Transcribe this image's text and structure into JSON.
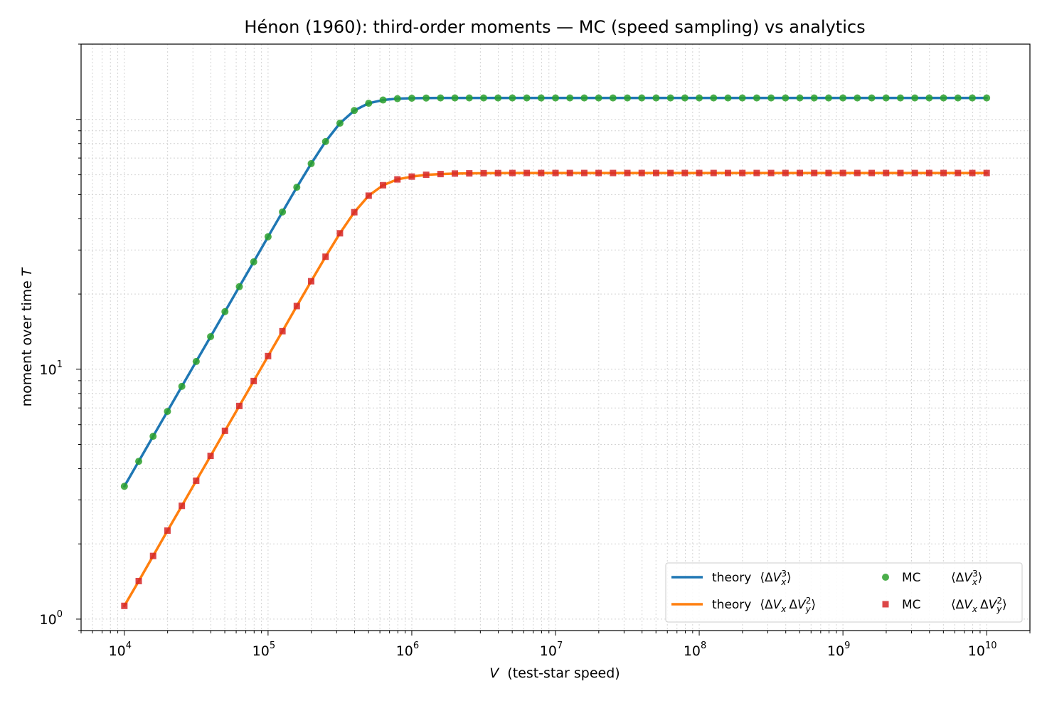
{
  "chart_data": {
    "type": "line",
    "title": "Hénon (1960): third-order moments — MC (speed sampling) vs analytics",
    "xlabel": "V",
    "xlabel_suffix": "(test-star speed)",
    "ylabel": "moment over time",
    "ylabel_var": "T",
    "xscale": "log",
    "yscale": "log",
    "xlim": [
      5000,
      20000000000
    ],
    "ylim": [
      0.9,
      200
    ],
    "grid": true,
    "legend_position": "lower-right",
    "x_ticks": [
      {
        "value": 10000,
        "base": "10",
        "exp": "4"
      },
      {
        "value": 100000,
        "base": "10",
        "exp": "5"
      },
      {
        "value": 1000000,
        "base": "10",
        "exp": "6"
      },
      {
        "value": 10000000,
        "base": "10",
        "exp": "7"
      },
      {
        "value": 100000000,
        "base": "10",
        "exp": "8"
      },
      {
        "value": 1000000000,
        "base": "10",
        "exp": "9"
      },
      {
        "value": 10000000000,
        "base": "10",
        "exp": "10"
      }
    ],
    "y_ticks": [
      {
        "value": 1,
        "base": "10",
        "exp": "0"
      },
      {
        "value": 10,
        "base": "10",
        "exp": "1"
      }
    ],
    "x_log10_start": 4,
    "x_log10_step": 0.1,
    "series": [
      {
        "name": "theory",
        "label_math": "⟨ΔV_x^3⟩",
        "kind": "line",
        "color": "#1f77b4",
        "values": [
          3.4,
          4.28,
          5.39,
          6.78,
          8.54,
          10.74,
          13.51,
          17.0,
          21.4,
          26.9,
          33.9,
          42.6,
          53.5,
          66.5,
          81.5,
          96.5,
          108.5,
          116.0,
          119.5,
          121.0,
          121.5,
          121.7,
          121.8,
          121.8,
          121.8,
          121.8,
          121.8,
          121.8,
          121.8,
          121.8,
          121.8,
          121.8,
          121.8,
          121.8,
          121.8,
          121.8,
          121.8,
          121.8,
          121.8,
          121.8,
          121.8,
          121.8,
          121.8,
          121.8,
          121.8,
          121.8,
          121.8,
          121.8,
          121.8,
          121.8,
          121.8,
          121.8,
          121.8,
          121.8,
          121.8,
          121.8,
          121.8,
          121.8,
          121.8,
          121.8,
          121.8
        ]
      },
      {
        "name": "theory",
        "label_math": "⟨ΔV_x ΔV_y^2⟩",
        "kind": "line",
        "color": "#ff7f0e",
        "values": [
          1.13,
          1.42,
          1.79,
          2.26,
          2.84,
          3.58,
          4.5,
          5.67,
          7.13,
          8.97,
          11.29,
          14.2,
          17.9,
          22.5,
          28.2,
          35.0,
          42.5,
          49.5,
          54.5,
          57.5,
          59.0,
          60.0,
          60.4,
          60.7,
          60.8,
          60.9,
          60.95,
          61.0,
          61.0,
          61.0,
          61.0,
          61.0,
          61.0,
          61.0,
          61.0,
          61.0,
          61.0,
          61.0,
          61.0,
          61.0,
          61.0,
          61.0,
          61.0,
          61.0,
          61.0,
          61.0,
          61.0,
          61.0,
          61.0,
          61.0,
          61.0,
          61.0,
          61.0,
          61.0,
          61.0,
          61.0,
          61.0,
          61.0,
          61.0,
          61.0,
          61.0
        ]
      },
      {
        "name": "MC",
        "label_math": "⟨ΔV_x^3⟩",
        "kind": "scatter",
        "marker": "circle",
        "color": "#2ca02c",
        "values": [
          3.4,
          4.28,
          5.39,
          6.78,
          8.54,
          10.74,
          13.51,
          17.0,
          21.4,
          26.9,
          33.9,
          42.6,
          53.5,
          66.5,
          81.5,
          96.5,
          108.5,
          116.0,
          119.5,
          121.0,
          121.5,
          121.7,
          121.8,
          121.8,
          121.8,
          121.8,
          121.8,
          121.8,
          121.8,
          121.8,
          121.8,
          121.8,
          121.8,
          121.8,
          121.8,
          121.8,
          121.8,
          121.8,
          121.8,
          121.8,
          121.8,
          121.8,
          121.8,
          121.8,
          121.8,
          121.8,
          121.8,
          121.8,
          121.8,
          121.8,
          121.8,
          121.8,
          121.8,
          121.8,
          121.8,
          121.8,
          121.8,
          121.8,
          121.8,
          121.8,
          121.8
        ]
      },
      {
        "name": "MC",
        "label_math": "⟨ΔV_x ΔV_y^2⟩",
        "kind": "scatter",
        "marker": "square",
        "color": "#d62728",
        "values": [
          1.13,
          1.42,
          1.79,
          2.26,
          2.84,
          3.58,
          4.5,
          5.67,
          7.13,
          8.97,
          11.29,
          14.2,
          17.9,
          22.5,
          28.2,
          35.0,
          42.5,
          49.5,
          54.5,
          57.5,
          59.0,
          60.0,
          60.4,
          60.7,
          60.8,
          60.9,
          60.95,
          61.0,
          61.0,
          61.0,
          61.0,
          61.0,
          61.0,
          61.0,
          61.0,
          61.0,
          61.0,
          61.0,
          61.0,
          61.0,
          61.0,
          61.0,
          61.0,
          61.0,
          61.0,
          61.0,
          61.0,
          61.0,
          61.0,
          61.0,
          61.0,
          61.0,
          61.0,
          61.0,
          61.0,
          61.0,
          61.0,
          61.0,
          61.0,
          61.0,
          61.0
        ]
      }
    ]
  }
}
